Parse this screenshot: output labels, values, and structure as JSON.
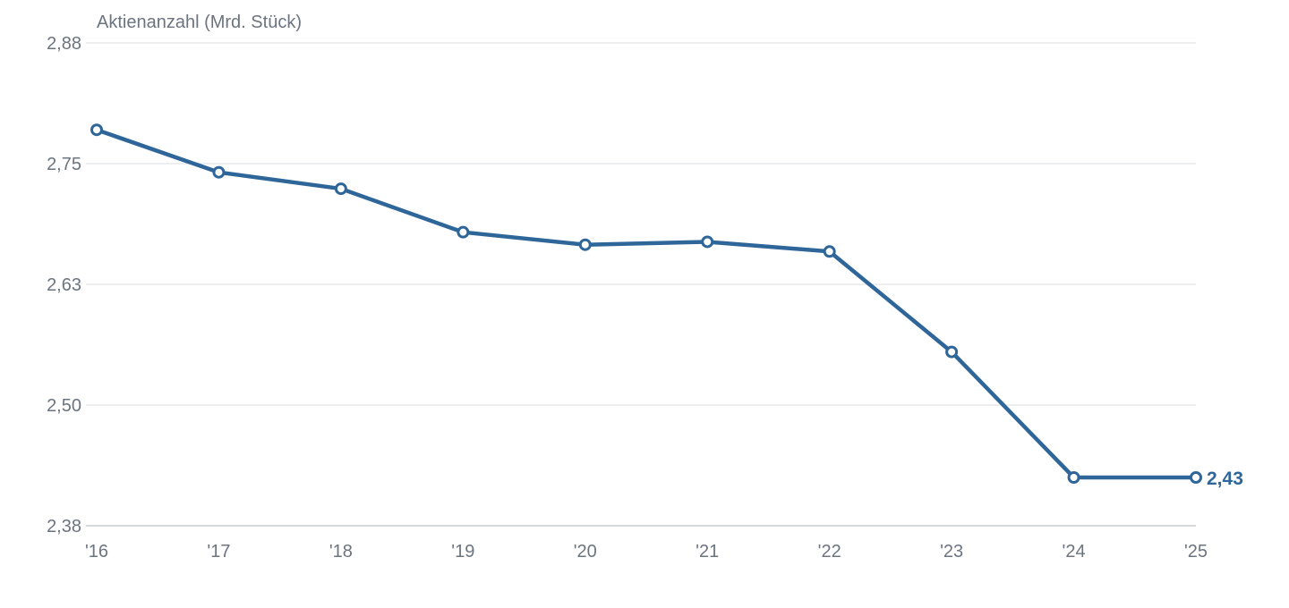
{
  "chart_data": {
    "type": "line",
    "title": "",
    "xlabel": "",
    "ylabel": "Aktienanzahl (Mrd. Stück)",
    "categories": [
      "'16",
      "'17",
      "'18",
      "'19",
      "'20",
      "'21",
      "'22",
      "'23",
      "'24",
      "'25"
    ],
    "values": [
      2.79,
      2.746,
      2.729,
      2.684,
      2.671,
      2.674,
      2.664,
      2.56,
      2.43,
      2.43
    ],
    "ylim": [
      2.38,
      2.88
    ],
    "yticks": [
      "2,38",
      "2,50",
      "2,63",
      "2,75",
      "2,88"
    ],
    "ytick_values": [
      2.38,
      2.505,
      2.63,
      2.755,
      2.88
    ],
    "end_label": "2,43",
    "grid": true,
    "legend": "none",
    "line_color": "#2f6699"
  }
}
